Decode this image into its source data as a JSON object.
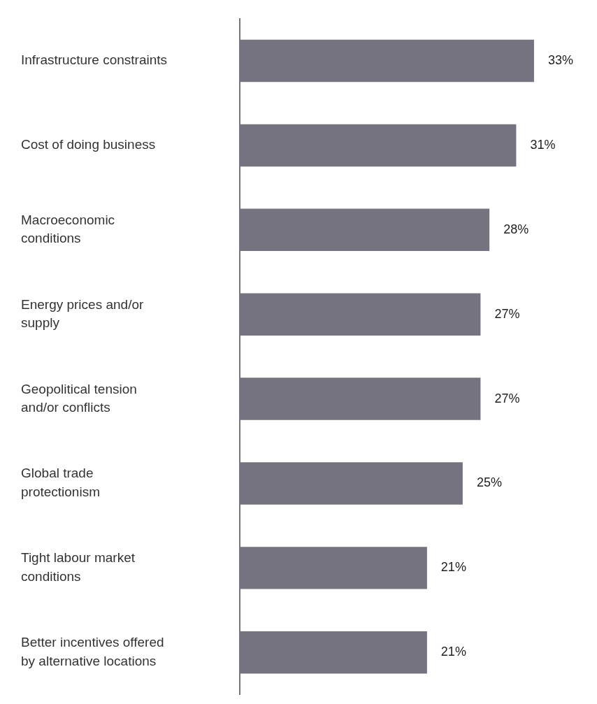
{
  "chart_data": {
    "type": "bar",
    "orientation": "horizontal",
    "categories": [
      "Infrastructure constraints",
      "Cost of doing business",
      "Macroeconomic\nconditions",
      "Energy prices and/or\nsupply",
      "Geopolitical tension\nand/or conflicts",
      "Global trade\nprotectionism",
      "Tight labour market\nconditions",
      "Better incentives offered\nby alternative locations"
    ],
    "values": [
      33,
      31,
      28,
      27,
      27,
      25,
      21,
      21
    ],
    "value_labels": [
      "33%",
      "31%",
      "28%",
      "27%",
      "27%",
      "25%",
      "21%",
      "21%"
    ],
    "color": "#75737f",
    "legend": false
  }
}
